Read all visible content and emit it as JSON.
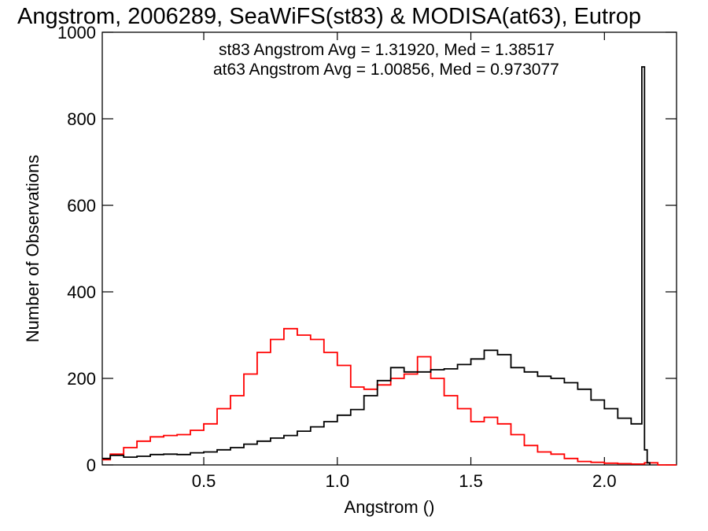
{
  "chart_data": {
    "type": "line",
    "title": "Angstrom, 2006289, SeaWiFS(st83) & MODISA(at63), Eutrop",
    "xlabel": "Angstrom ()",
    "ylabel": "Number of Observations",
    "xlim": [
      0.12,
      2.27
    ],
    "ylim": [
      0,
      1000
    ],
    "x_ticks": [
      0.5,
      1.0,
      1.5,
      2.0
    ],
    "x_tick_labels": [
      "0.5",
      "1.0",
      "1.5",
      "2.0"
    ],
    "y_ticks": [
      0,
      200,
      400,
      600,
      800,
      1000
    ],
    "y_tick_labels": [
      "0",
      "200",
      "400",
      "600",
      "800",
      "1000"
    ],
    "grid": false,
    "annotations": [
      {
        "text": "st83 Angstrom Avg = 1.31920, Med = 1.38517",
        "color": "#000000"
      },
      {
        "text": "at63 Angstrom Avg = 1.00856, Med = 0.973077",
        "color": "#ff0000"
      }
    ],
    "series": [
      {
        "name": "st83",
        "color": "#000000",
        "x": [
          0.12,
          0.15,
          0.2,
          0.25,
          0.3,
          0.35,
          0.4,
          0.45,
          0.5,
          0.55,
          0.6,
          0.65,
          0.7,
          0.75,
          0.8,
          0.85,
          0.9,
          0.95,
          1.0,
          1.05,
          1.1,
          1.15,
          1.2,
          1.25,
          1.3,
          1.35,
          1.4,
          1.45,
          1.5,
          1.55,
          1.6,
          1.65,
          1.7,
          1.75,
          1.8,
          1.85,
          1.9,
          1.95,
          2.0,
          2.05,
          2.1,
          2.13,
          2.14,
          2.15,
          2.16,
          2.17
        ],
        "y": [
          15,
          22,
          18,
          20,
          24,
          25,
          24,
          28,
          30,
          35,
          40,
          48,
          55,
          62,
          68,
          78,
          88,
          100,
          115,
          128,
          160,
          195,
          225,
          215,
          215,
          220,
          222,
          232,
          245,
          265,
          255,
          225,
          215,
          205,
          200,
          190,
          175,
          150,
          130,
          108,
          95,
          95,
          920,
          35,
          5,
          0
        ]
      },
      {
        "name": "at63",
        "color": "#ff0000",
        "x": [
          0.12,
          0.15,
          0.2,
          0.25,
          0.3,
          0.35,
          0.4,
          0.45,
          0.5,
          0.55,
          0.6,
          0.65,
          0.7,
          0.75,
          0.8,
          0.85,
          0.9,
          0.95,
          1.0,
          1.05,
          1.1,
          1.15,
          1.2,
          1.25,
          1.3,
          1.35,
          1.4,
          1.45,
          1.5,
          1.55,
          1.6,
          1.65,
          1.7,
          1.75,
          1.8,
          1.85,
          1.9,
          1.95,
          2.0,
          2.05,
          2.1,
          2.15,
          2.2,
          2.27
        ],
        "y": [
          12,
          25,
          40,
          55,
          65,
          68,
          70,
          80,
          95,
          130,
          160,
          210,
          260,
          290,
          315,
          300,
          290,
          260,
          230,
          180,
          175,
          185,
          200,
          210,
          250,
          200,
          160,
          130,
          100,
          110,
          95,
          70,
          45,
          30,
          25,
          15,
          8,
          6,
          4,
          3,
          2,
          5,
          0,
          0
        ]
      }
    ]
  }
}
